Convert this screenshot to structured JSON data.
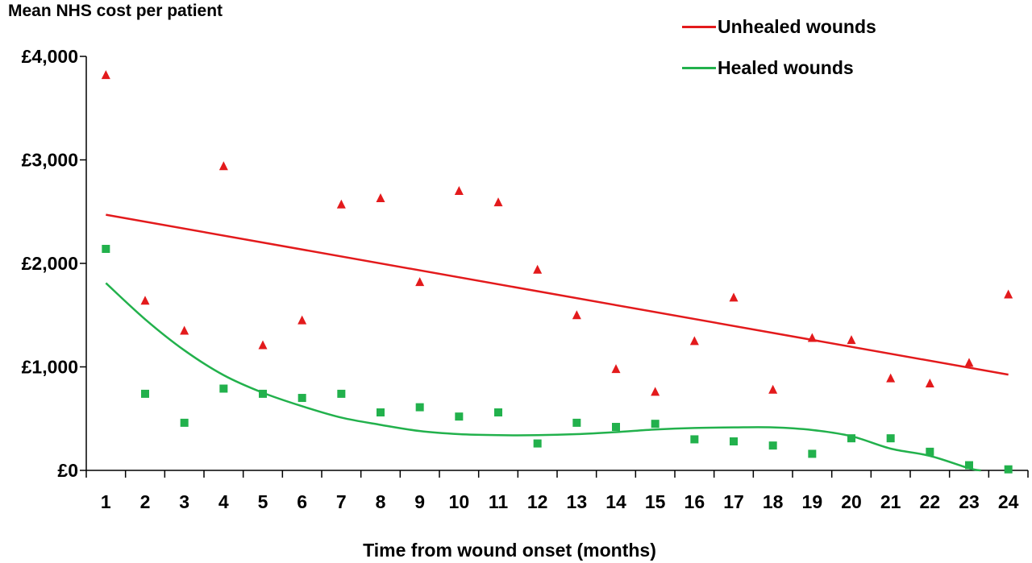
{
  "chart_data": {
    "type": "scatter",
    "ylabel": "Mean NHS cost per patient",
    "xlabel": "Time from wound onset (months)",
    "x": [
      1,
      2,
      3,
      4,
      5,
      6,
      7,
      8,
      9,
      10,
      11,
      12,
      13,
      14,
      15,
      16,
      17,
      18,
      19,
      20,
      21,
      22,
      23,
      24
    ],
    "x_tick_labels": [
      "1",
      "2",
      "3",
      "4",
      "5",
      "6",
      "7",
      "8",
      "9",
      "10",
      "11",
      "12",
      "13",
      "14",
      "15",
      "16",
      "17",
      "18",
      "19",
      "20",
      "21",
      "22",
      "23",
      "24"
    ],
    "y_tick_values": [
      0,
      1000,
      2000,
      3000,
      4000
    ],
    "y_tick_labels": [
      "£0",
      "£1,000",
      "£2,000",
      "£3,000",
      "£4,000"
    ],
    "ylim": [
      0,
      4000
    ],
    "grid": false,
    "legend_position": "top-right",
    "series": [
      {
        "name": "Unhealed wounds",
        "color": "#e31a1c",
        "marker": "triangle",
        "values": [
          3820,
          1640,
          1350,
          2940,
          1210,
          1450,
          2570,
          2630,
          1820,
          2700,
          2590,
          1940,
          1500,
          980,
          760,
          1250,
          1670,
          780,
          1280,
          1260,
          890,
          840,
          1040,
          1700
        ],
        "trend": {
          "type": "linear",
          "start": [
            1,
            2470
          ],
          "end": [
            24,
            925
          ]
        }
      },
      {
        "name": "Healed wounds",
        "color": "#22b14c",
        "marker": "square",
        "values": [
          2140,
          740,
          460,
          790,
          740,
          700,
          740,
          560,
          610,
          520,
          560,
          260,
          460,
          420,
          450,
          300,
          280,
          240,
          160,
          310,
          310,
          180,
          50,
          10
        ],
        "trend": {
          "type": "polynomial",
          "points": [
            [
              1,
              1810
            ],
            [
              2,
              1460
            ],
            [
              3,
              1160
            ],
            [
              4,
              920
            ],
            [
              5,
              750
            ],
            [
              6,
              620
            ],
            [
              7,
              510
            ],
            [
              8,
              440
            ],
            [
              9,
              380
            ],
            [
              10,
              350
            ],
            [
              11,
              340
            ],
            [
              12,
              340
            ],
            [
              13,
              350
            ],
            [
              14,
              370
            ],
            [
              15,
              395
            ],
            [
              16,
              410
            ],
            [
              17,
              415
            ],
            [
              18,
              415
            ],
            [
              19,
              390
            ],
            [
              20,
              330
            ],
            [
              21,
              210
            ],
            [
              22,
              140
            ],
            [
              23,
              20
            ],
            [
              23.3,
              0
            ]
          ]
        }
      }
    ]
  }
}
